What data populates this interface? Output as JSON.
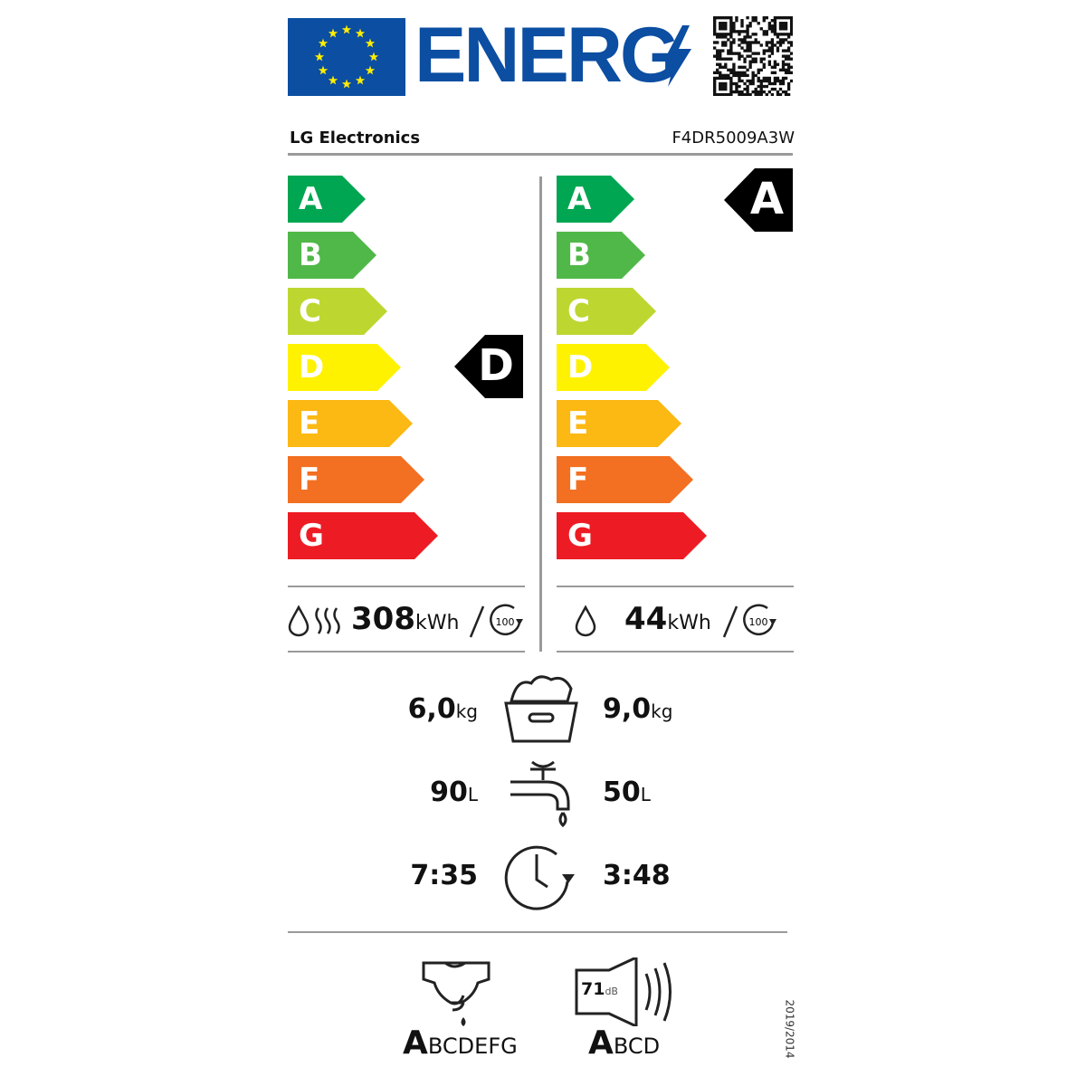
{
  "header": {
    "energy_word": "ENERG",
    "flag_color": "#0b4ea2",
    "brand_blue": "#0b4ea2",
    "qr_code": "qr-code"
  },
  "supplier": "LG Electronics",
  "model": "F4DR5009A3W",
  "scale": {
    "classes": [
      "A",
      "B",
      "C",
      "D",
      "E",
      "F",
      "G"
    ],
    "colors": [
      "#00a651",
      "#50b848",
      "#bed630",
      "#fff200",
      "#fcb813",
      "#f36f21",
      "#ed1c24"
    ]
  },
  "washer_dryer": {
    "class": "D",
    "energy_value": "308",
    "energy_unit": "kWh",
    "cycles": "100"
  },
  "washing": {
    "class": "A",
    "energy_value": "44",
    "energy_unit": "kWh",
    "cycles": "100"
  },
  "capacity": {
    "dry": "6,0",
    "wash": "9,0",
    "unit": "kg"
  },
  "water": {
    "dry": "90",
    "wash": "50",
    "unit": "L"
  },
  "duration": {
    "dry": "7:35",
    "wash": "3:48"
  },
  "spin": {
    "selected": "A",
    "rest": "BCDEFG"
  },
  "noise": {
    "value": "71",
    "unit": "dB",
    "selected": "A",
    "rest": "BCD"
  },
  "regulation": "2019/2014"
}
